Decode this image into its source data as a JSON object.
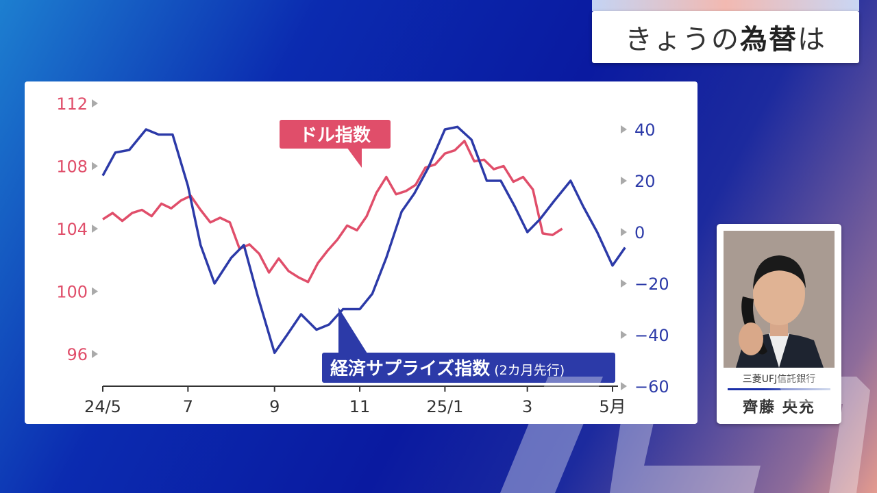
{
  "header": {
    "title_prefix": "きょうの",
    "title_emphasis": "為替",
    "title_suffix": "は"
  },
  "speaker": {
    "company": "三菱UFJ信託銀行",
    "name": "齊藤 央充"
  },
  "colors": {
    "dollar_index": "#e04e6a",
    "surprise_index": "#2c3aa8",
    "axis_text": "#333333"
  },
  "chart_data": {
    "type": "line",
    "title": "",
    "x_tick_labels": [
      "24/5",
      "7",
      "9",
      "11",
      "25/1",
      "3",
      "5月"
    ],
    "x_range": [
      "2024-05",
      "2025-05"
    ],
    "left_axis": {
      "ticks": [
        112,
        108,
        104,
        100,
        96
      ],
      "range": [
        94,
        112.5
      ]
    },
    "right_axis": {
      "ticks": [
        40,
        20,
        0,
        -20,
        -40,
        -60
      ],
      "range": [
        -60,
        48
      ]
    },
    "annotations": [
      {
        "text": "ドル指数",
        "series": "dollar_index"
      },
      {
        "text": "経済サプライズ指数",
        "subtext": "(2カ月先行)",
        "series": "surprise_index"
      }
    ],
    "series": [
      {
        "name": "ドル指数",
        "key": "dollar_index",
        "axis": "left",
        "color": "#e04e6a",
        "points": [
          [
            "2024-05-01",
            104.6
          ],
          [
            "2024-05-08",
            105.0
          ],
          [
            "2024-05-15",
            104.5
          ],
          [
            "2024-05-22",
            105.0
          ],
          [
            "2024-05-29",
            105.2
          ],
          [
            "2024-06-05",
            104.8
          ],
          [
            "2024-06-12",
            105.6
          ],
          [
            "2024-06-19",
            105.3
          ],
          [
            "2024-06-26",
            105.8
          ],
          [
            "2024-07-03",
            106.1
          ],
          [
            "2024-07-10",
            105.2
          ],
          [
            "2024-07-17",
            104.4
          ],
          [
            "2024-07-24",
            104.7
          ],
          [
            "2024-07-31",
            104.4
          ],
          [
            "2024-08-07",
            102.7
          ],
          [
            "2024-08-14",
            103.0
          ],
          [
            "2024-08-21",
            102.4
          ],
          [
            "2024-08-28",
            101.2
          ],
          [
            "2024-09-04",
            102.1
          ],
          [
            "2024-09-11",
            101.3
          ],
          [
            "2024-09-18",
            100.9
          ],
          [
            "2024-09-25",
            100.6
          ],
          [
            "2024-10-02",
            101.8
          ],
          [
            "2024-10-09",
            102.6
          ],
          [
            "2024-10-16",
            103.3
          ],
          [
            "2024-10-23",
            104.2
          ],
          [
            "2024-10-30",
            103.9
          ],
          [
            "2024-11-06",
            104.8
          ],
          [
            "2024-11-13",
            106.3
          ],
          [
            "2024-11-20",
            107.3
          ],
          [
            "2024-11-27",
            106.2
          ],
          [
            "2024-12-04",
            106.4
          ],
          [
            "2024-12-11",
            106.8
          ],
          [
            "2024-12-18",
            107.9
          ],
          [
            "2024-12-25",
            108.1
          ],
          [
            "2025-01-01",
            108.8
          ],
          [
            "2025-01-08",
            109.0
          ],
          [
            "2025-01-15",
            109.6
          ],
          [
            "2025-01-22",
            108.3
          ],
          [
            "2025-01-29",
            108.4
          ],
          [
            "2025-02-05",
            107.8
          ],
          [
            "2025-02-12",
            108.0
          ],
          [
            "2025-02-19",
            107.0
          ],
          [
            "2025-02-26",
            107.3
          ],
          [
            "2025-03-05",
            106.5
          ],
          [
            "2025-03-12",
            103.7
          ],
          [
            "2025-03-19",
            103.6
          ],
          [
            "2025-03-26",
            104.0
          ]
        ]
      },
      {
        "name": "経済サプライズ指数(2カ月先行)",
        "key": "surprise_index",
        "axis": "right",
        "color": "#2c3aa8",
        "points": [
          [
            "2024-05-01",
            22
          ],
          [
            "2024-05-10",
            31
          ],
          [
            "2024-05-20",
            32
          ],
          [
            "2024-06-01",
            40
          ],
          [
            "2024-06-10",
            38
          ],
          [
            "2024-06-20",
            38
          ],
          [
            "2024-07-01",
            18
          ],
          [
            "2024-07-10",
            -5
          ],
          [
            "2024-07-20",
            -20
          ],
          [
            "2024-08-01",
            -10
          ],
          [
            "2024-08-10",
            -5
          ],
          [
            "2024-08-20",
            -25
          ],
          [
            "2024-09-01",
            -47
          ],
          [
            "2024-09-10",
            -40
          ],
          [
            "2024-09-20",
            -32
          ],
          [
            "2024-10-01",
            -38
          ],
          [
            "2024-10-10",
            -36
          ],
          [
            "2024-10-20",
            -30
          ],
          [
            "2024-11-01",
            -30
          ],
          [
            "2024-11-10",
            -24
          ],
          [
            "2024-11-20",
            -10
          ],
          [
            "2024-12-01",
            8
          ],
          [
            "2024-12-10",
            15
          ],
          [
            "2024-12-20",
            25
          ],
          [
            "2025-01-01",
            40
          ],
          [
            "2025-01-10",
            41
          ],
          [
            "2025-01-20",
            36
          ],
          [
            "2025-01-31",
            20
          ],
          [
            "2025-02-10",
            20
          ],
          [
            "2025-02-20",
            10
          ],
          [
            "2025-03-01",
            0
          ],
          [
            "2025-03-10",
            5
          ],
          [
            "2025-03-20",
            12
          ],
          [
            "2025-04-01",
            20
          ],
          [
            "2025-04-10",
            10
          ],
          [
            "2025-04-20",
            0
          ],
          [
            "2025-05-01",
            -13
          ],
          [
            "2025-05-10",
            -6
          ]
        ]
      }
    ]
  }
}
